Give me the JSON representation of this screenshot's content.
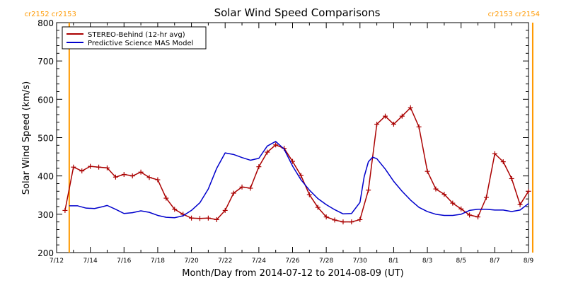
{
  "chart_data": {
    "type": "line",
    "title": "Solar Wind Speed Comparisons",
    "xlabel": "Month/Day from 2014-07-12 to 2014-08-09 (UT)",
    "ylabel": "Solar Wind Speed (km/s)",
    "ylim": [
      200,
      800
    ],
    "yticks": [
      "200",
      "300",
      "400",
      "500",
      "600",
      "700",
      "800"
    ],
    "xlim": [
      "2014-07-12",
      "2014-08-09"
    ],
    "xticks": [
      {
        "date": "2014-07-12",
        "label": "7/12"
      },
      {
        "date": "2014-07-14",
        "label": "7/14"
      },
      {
        "date": "2014-07-16",
        "label": "7/16"
      },
      {
        "date": "2014-07-18",
        "label": "7/18"
      },
      {
        "date": "2014-07-20",
        "label": "7/20"
      },
      {
        "date": "2014-07-22",
        "label": "7/22"
      },
      {
        "date": "2014-07-24",
        "label": "7/24"
      },
      {
        "date": "2014-07-26",
        "label": "7/26"
      },
      {
        "date": "2014-07-28",
        "label": "7/28"
      },
      {
        "date": "2014-07-30",
        "label": "7/30"
      },
      {
        "date": "2014-08-01",
        "label": "8/1"
      },
      {
        "date": "2014-08-03",
        "label": "8/3"
      },
      {
        "date": "2014-08-05",
        "label": "8/5"
      },
      {
        "date": "2014-08-07",
        "label": "8/7"
      },
      {
        "date": "2014-08-09",
        "label": "8/9"
      }
    ],
    "carrington_markers": [
      {
        "date": "2014-07-12 18:00",
        "label": "cr2152 cr2153",
        "anchor": "end"
      },
      {
        "date": "2014-08-09 06:00",
        "label": "cr2153 cr2154",
        "anchor": "start"
      }
    ],
    "legend_position": "top-left",
    "series": [
      {
        "name": "STEREO-Behind (12-hr avg)",
        "color": "#aa0000",
        "markers": true,
        "points": [
          [
            "2014-07-12 12:00",
            310
          ],
          [
            "2014-07-13 00:00",
            423
          ],
          [
            "2014-07-13 12:00",
            413
          ],
          [
            "2014-07-14 00:00",
            425
          ],
          [
            "2014-07-14 12:00",
            423
          ],
          [
            "2014-07-15 00:00",
            421
          ],
          [
            "2014-07-15 12:00",
            397
          ],
          [
            "2014-07-16 00:00",
            404
          ],
          [
            "2014-07-16 12:00",
            400
          ],
          [
            "2014-07-17 00:00",
            410
          ],
          [
            "2014-07-17 12:00",
            396
          ],
          [
            "2014-07-18 00:00",
            390
          ],
          [
            "2014-07-18 12:00",
            342
          ],
          [
            "2014-07-19 00:00",
            313
          ],
          [
            "2014-07-19 12:00",
            300
          ],
          [
            "2014-07-20 00:00",
            290
          ],
          [
            "2014-07-20 12:00",
            289
          ],
          [
            "2014-07-21 00:00",
            290
          ],
          [
            "2014-07-21 12:00",
            286
          ],
          [
            "2014-07-22 00:00",
            310
          ],
          [
            "2014-07-22 12:00",
            355
          ],
          [
            "2014-07-23 00:00",
            371
          ],
          [
            "2014-07-23 12:00",
            368
          ],
          [
            "2014-07-24 00:00",
            424
          ],
          [
            "2014-07-24 12:00",
            462
          ],
          [
            "2014-07-25 00:00",
            481
          ],
          [
            "2014-07-25 12:00",
            472
          ],
          [
            "2014-07-26 00:00",
            438
          ],
          [
            "2014-07-26 12:00",
            401
          ],
          [
            "2014-07-27 00:00",
            351
          ],
          [
            "2014-07-27 12:00",
            318
          ],
          [
            "2014-07-28 00:00",
            293
          ],
          [
            "2014-07-28 12:00",
            285
          ],
          [
            "2014-07-29 00:00",
            280
          ],
          [
            "2014-07-29 12:00",
            280
          ],
          [
            "2014-07-30 00:00",
            286
          ],
          [
            "2014-07-30 12:00",
            363
          ],
          [
            "2014-07-31 00:00",
            535
          ],
          [
            "2014-07-31 12:00",
            556
          ],
          [
            "2014-08-01 00:00",
            535
          ],
          [
            "2014-08-01 12:00",
            556
          ],
          [
            "2014-08-02 00:00",
            578
          ],
          [
            "2014-08-02 12:00",
            528
          ],
          [
            "2014-08-03 00:00",
            412
          ],
          [
            "2014-08-03 12:00",
            366
          ],
          [
            "2014-08-04 00:00",
            352
          ],
          [
            "2014-08-04 12:00",
            329
          ],
          [
            "2014-08-05 00:00",
            314
          ],
          [
            "2014-08-05 12:00",
            298
          ],
          [
            "2014-08-06 00:00",
            293
          ],
          [
            "2014-08-06 12:00",
            344
          ],
          [
            "2014-08-07 00:00",
            458
          ],
          [
            "2014-08-07 12:00",
            437
          ],
          [
            "2014-08-08 00:00",
            393
          ],
          [
            "2014-08-08 12:00",
            325
          ],
          [
            "2014-08-09 00:00",
            360
          ]
        ]
      },
      {
        "name": "Predictive Science MAS Model",
        "color": "#0000cc",
        "markers": false,
        "points": [
          [
            "2014-07-12 18:00",
            322
          ],
          [
            "2014-07-13 06:00",
            322
          ],
          [
            "2014-07-13 18:00",
            316
          ],
          [
            "2014-07-14 06:00",
            315
          ],
          [
            "2014-07-14 18:00",
            320
          ],
          [
            "2014-07-15 00:00",
            323
          ],
          [
            "2014-07-15 12:00",
            313
          ],
          [
            "2014-07-16 00:00",
            302
          ],
          [
            "2014-07-16 12:00",
            304
          ],
          [
            "2014-07-17 00:00",
            309
          ],
          [
            "2014-07-17 12:00",
            305
          ],
          [
            "2014-07-18 00:00",
            297
          ],
          [
            "2014-07-18 12:00",
            292
          ],
          [
            "2014-07-19 00:00",
            291
          ],
          [
            "2014-07-19 12:00",
            296
          ],
          [
            "2014-07-20 00:00",
            310
          ],
          [
            "2014-07-20 12:00",
            330
          ],
          [
            "2014-07-21 00:00",
            366
          ],
          [
            "2014-07-21 12:00",
            420
          ],
          [
            "2014-07-22 00:00",
            460
          ],
          [
            "2014-07-22 12:00",
            456
          ],
          [
            "2014-07-23 00:00",
            448
          ],
          [
            "2014-07-23 12:00",
            441
          ],
          [
            "2014-07-24 00:00",
            446
          ],
          [
            "2014-07-24 12:00",
            478
          ],
          [
            "2014-07-25 00:00",
            490
          ],
          [
            "2014-07-25 12:00",
            470
          ],
          [
            "2014-07-26 00:00",
            426
          ],
          [
            "2014-07-26 12:00",
            390
          ],
          [
            "2014-07-27 00:00",
            363
          ],
          [
            "2014-07-27 12:00",
            341
          ],
          [
            "2014-07-28 00:00",
            325
          ],
          [
            "2014-07-28 12:00",
            312
          ],
          [
            "2014-07-29 00:00",
            301
          ],
          [
            "2014-07-29 12:00",
            302
          ],
          [
            "2014-07-30 00:00",
            331
          ],
          [
            "2014-07-30 06:00",
            398
          ],
          [
            "2014-07-30 12:00",
            437
          ],
          [
            "2014-07-30 18:00",
            449
          ],
          [
            "2014-07-31 00:00",
            445
          ],
          [
            "2014-07-31 12:00",
            418
          ],
          [
            "2014-08-01 00:00",
            386
          ],
          [
            "2014-08-01 12:00",
            360
          ],
          [
            "2014-08-02 00:00",
            337
          ],
          [
            "2014-08-02 12:00",
            318
          ],
          [
            "2014-08-03 00:00",
            307
          ],
          [
            "2014-08-03 12:00",
            300
          ],
          [
            "2014-08-04 00:00",
            297
          ],
          [
            "2014-08-04 12:00",
            297
          ],
          [
            "2014-08-05 00:00",
            300
          ],
          [
            "2014-08-05 12:00",
            310
          ],
          [
            "2014-08-06 00:00",
            313
          ],
          [
            "2014-08-06 12:00",
            313
          ],
          [
            "2014-08-07 00:00",
            311
          ],
          [
            "2014-08-07 12:00",
            311
          ],
          [
            "2014-08-08 00:00",
            307
          ],
          [
            "2014-08-08 12:00",
            311
          ],
          [
            "2014-08-09 00:00",
            328
          ]
        ]
      }
    ]
  }
}
